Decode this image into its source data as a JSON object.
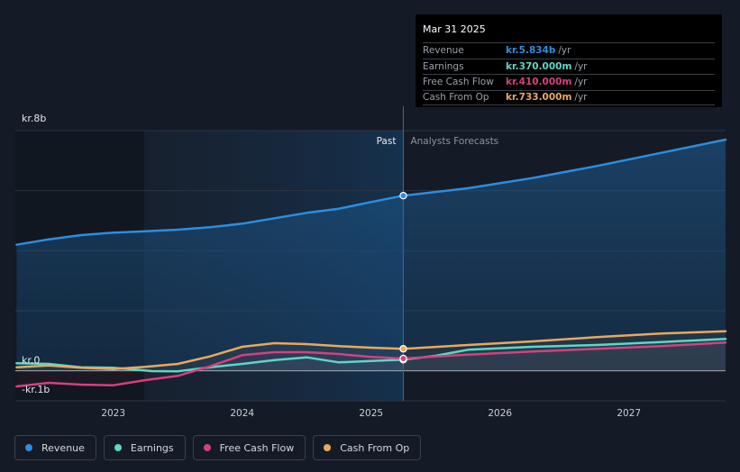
{
  "chart_data": {
    "type": "line",
    "title": "",
    "y_axis": {
      "min": -1000,
      "max": 8000,
      "unit": "m DKK",
      "tick_labels": [
        {
          "value": 8000,
          "label": "kr.8b"
        },
        {
          "value": 0,
          "label": "kr.0"
        },
        {
          "value": -1000,
          "label": "-kr.1b"
        }
      ],
      "gridlines": [
        8000,
        6000,
        4000,
        2000,
        0
      ]
    },
    "x_axis": {
      "min": 2022.24,
      "max": 2027.75,
      "ticks": [
        {
          "value": 2023.0,
          "label": "2023"
        },
        {
          "value": 2024.0,
          "label": "2024"
        },
        {
          "value": 2025.0,
          "label": "2025"
        },
        {
          "value": 2026.0,
          "label": "2026"
        },
        {
          "value": 2027.0,
          "label": "2027"
        }
      ]
    },
    "past_start": 2023.24,
    "divider": 2025.25,
    "past_label": "Past",
    "forecast_label": "Analysts Forecasts",
    "series": [
      {
        "name": "Revenue",
        "color": "#2b8ee0",
        "points": [
          [
            2022.25,
            4200
          ],
          [
            2022.5,
            4380
          ],
          [
            2022.75,
            4520
          ],
          [
            2023.0,
            4600
          ],
          [
            2023.25,
            4650
          ],
          [
            2023.5,
            4700
          ],
          [
            2023.75,
            4780
          ],
          [
            2024.0,
            4900
          ],
          [
            2024.25,
            5080
          ],
          [
            2024.5,
            5260
          ],
          [
            2024.75,
            5400
          ],
          [
            2025.0,
            5620
          ],
          [
            2025.25,
            5834
          ],
          [
            2025.75,
            6080
          ],
          [
            2026.25,
            6420
          ],
          [
            2026.75,
            6820
          ],
          [
            2027.25,
            7260
          ],
          [
            2027.75,
            7700
          ]
        ]
      },
      {
        "name": "Earnings",
        "color": "#5ad8c6",
        "points": [
          [
            2022.25,
            250
          ],
          [
            2022.5,
            230
          ],
          [
            2022.75,
            120
          ],
          [
            2023.0,
            100
          ],
          [
            2023.15,
            50
          ],
          [
            2023.3,
            -10
          ],
          [
            2023.5,
            -20
          ],
          [
            2023.75,
            120
          ],
          [
            2024.0,
            230
          ],
          [
            2024.25,
            360
          ],
          [
            2024.5,
            450
          ],
          [
            2024.75,
            280
          ],
          [
            2025.0,
            330
          ],
          [
            2025.25,
            370
          ],
          [
            2025.5,
            500
          ],
          [
            2025.75,
            700
          ],
          [
            2026.25,
            800
          ],
          [
            2026.75,
            860
          ],
          [
            2027.25,
            960
          ],
          [
            2027.75,
            1060
          ]
        ]
      },
      {
        "name": "Free Cash Flow",
        "color": "#d4417d",
        "points": [
          [
            2022.25,
            -520
          ],
          [
            2022.5,
            -400
          ],
          [
            2022.75,
            -460
          ],
          [
            2023.0,
            -480
          ],
          [
            2023.25,
            -310
          ],
          [
            2023.5,
            -170
          ],
          [
            2023.75,
            150
          ],
          [
            2024.0,
            520
          ],
          [
            2024.25,
            620
          ],
          [
            2024.5,
            620
          ],
          [
            2024.75,
            560
          ],
          [
            2025.0,
            460
          ],
          [
            2025.25,
            410
          ],
          [
            2025.75,
            540
          ],
          [
            2026.25,
            640
          ],
          [
            2026.75,
            730
          ],
          [
            2027.25,
            820
          ],
          [
            2027.75,
            940
          ]
        ]
      },
      {
        "name": "Cash From Op",
        "color": "#e9a85e",
        "points": [
          [
            2022.25,
            120
          ],
          [
            2022.5,
            180
          ],
          [
            2022.75,
            100
          ],
          [
            2023.0,
            60
          ],
          [
            2023.25,
            130
          ],
          [
            2023.5,
            230
          ],
          [
            2023.75,
            480
          ],
          [
            2024.0,
            800
          ],
          [
            2024.25,
            920
          ],
          [
            2024.5,
            890
          ],
          [
            2024.75,
            820
          ],
          [
            2025.0,
            770
          ],
          [
            2025.25,
            733
          ],
          [
            2025.75,
            860
          ],
          [
            2026.25,
            980
          ],
          [
            2026.75,
            1120
          ],
          [
            2027.25,
            1240
          ],
          [
            2027.75,
            1320
          ]
        ]
      }
    ]
  },
  "tooltip": {
    "date": "Mar 31 2025",
    "rows": [
      {
        "label": "Revenue",
        "value": "kr.5.834b",
        "unit": "/yr",
        "color": "#2b8ee0"
      },
      {
        "label": "Earnings",
        "value": "kr.370.000m",
        "unit": "/yr",
        "color": "#5ad8c6"
      },
      {
        "label": "Free Cash Flow",
        "value": "kr.410.000m",
        "unit": "/yr",
        "color": "#d4417d"
      },
      {
        "label": "Cash From Op",
        "value": "kr.733.000m",
        "unit": "/yr",
        "color": "#e9a85e"
      }
    ]
  },
  "legend": [
    {
      "label": "Revenue",
      "color": "#2b8ee0"
    },
    {
      "label": "Earnings",
      "color": "#5ad8c6"
    },
    {
      "label": "Free Cash Flow",
      "color": "#d4417d"
    },
    {
      "label": "Cash From Op",
      "color": "#e9a85e"
    }
  ]
}
